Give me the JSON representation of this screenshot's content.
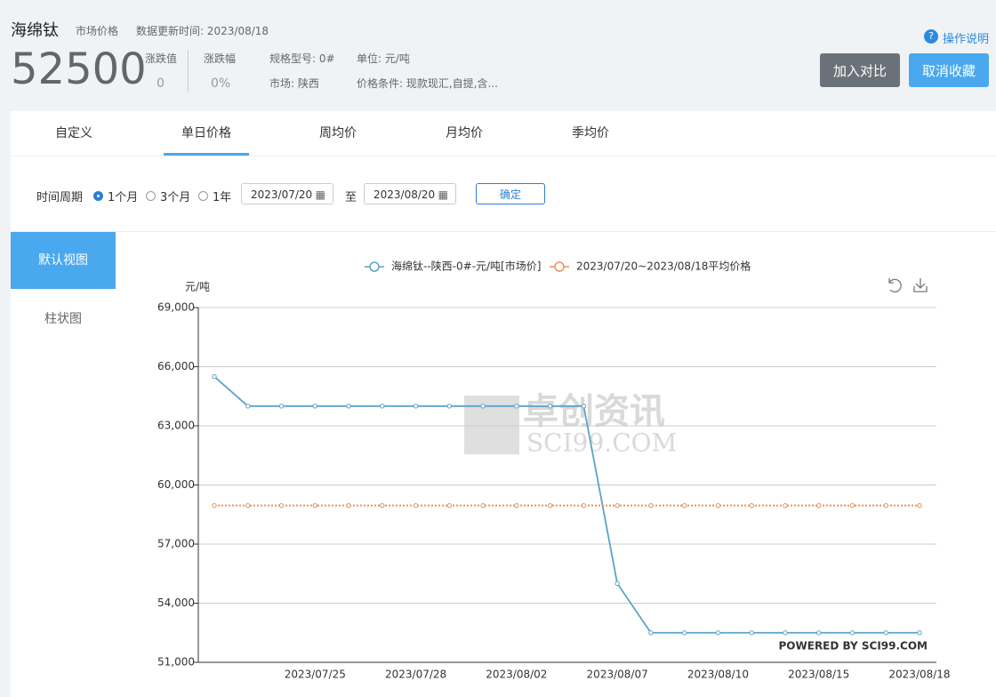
{
  "header": {
    "title": "海绵钛",
    "kind": "市场价格",
    "update": "数据更新时间: 2023/08/18",
    "price": 52500,
    "change_label": "涨跌值",
    "change": "0",
    "change_pct_label": "涨跌幅",
    "change_pct": "0%",
    "spec": "规格型号: 0#",
    "market": "市场: 陕西",
    "unit": "单位: 元/吨",
    "terms": "价格条件: 现款现汇,自提,含...",
    "help": "操作说明",
    "buttons": [
      "加入对比",
      "取消收藏"
    ]
  },
  "tabs": [
    "自定义",
    "单日价格",
    "周均价",
    "月均价",
    "季均价"
  ],
  "active_tab": 1,
  "filter": {
    "label": "时间周期",
    "options": [
      "1个月",
      "3个月",
      "1年"
    ],
    "selected": 0,
    "start": "2023/07/20",
    "to": "至",
    "end": "2023/08/20",
    "confirm": "确定"
  },
  "views": [
    "默认视图",
    "柱状图"
  ],
  "active_view": 0,
  "chart_data": {
    "type": "line",
    "y_unit": "元/吨",
    "categories": [
      null,
      null,
      null,
      "2023/07/25",
      null,
      null,
      "2023/07/28",
      null,
      null,
      "2023/08/02",
      null,
      null,
      "2023/08/07",
      null,
      null,
      "2023/08/10",
      null,
      null,
      "2023/08/15",
      null,
      null,
      "2023/08/18"
    ],
    "series": [
      {
        "name": "海绵钛--陕西-0#-元/吨[市场价]",
        "color": "#5ba3c9",
        "line_style": "solid",
        "values": [
          65500,
          64000,
          64000,
          64000,
          64000,
          64000,
          64000,
          64000,
          64000,
          64000,
          64000,
          64000,
          55000,
          52500,
          52500,
          52500,
          52500,
          52500,
          52500,
          52500,
          52500,
          52500
        ]
      },
      {
        "name": "2023/07/20~2023/08/18平均价格",
        "color": "#e8915a",
        "line_style": "dotted",
        "values": [
          58955,
          58955,
          58955,
          58955,
          58955,
          58955,
          58955,
          58955,
          58955,
          58955,
          58955,
          58955,
          58955,
          58955,
          58955,
          58955,
          58955,
          58955,
          58955,
          58955,
          58955,
          58955
        ]
      }
    ],
    "ylim": [
      51000,
      69000
    ],
    "yticks": [
      {
        "value": 51000,
        "label": "51,000"
      },
      {
        "value": 54000,
        "label": "54,000"
      },
      {
        "value": 57000,
        "label": "57,000"
      },
      {
        "value": 60000,
        "label": "60,000"
      },
      {
        "value": 63000,
        "label": "63,000"
      },
      {
        "value": 66000,
        "label": "66,000"
      },
      {
        "value": 69000,
        "label": "69,000"
      }
    ],
    "grid": true,
    "legend": "top",
    "watermark": [
      "卓创资讯",
      "SCI99.COM"
    ],
    "credit": "POWERED BY SCI99.COM"
  }
}
